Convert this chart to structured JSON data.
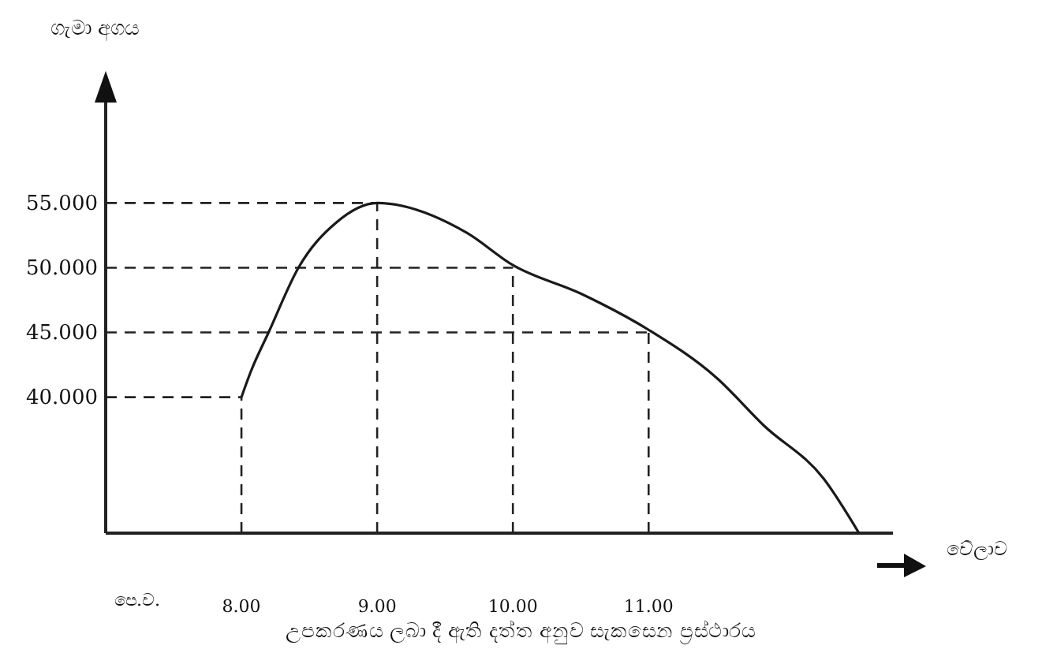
{
  "chart_data": {
    "type": "line",
    "title": "උපකරණය ලබා දී ඇති දත්ත  අනුව සැකසෙන ප්‍රස්ථාරය",
    "xlabel": "වේලාව",
    "ylabel": "ගැමා අගය",
    "annotations": [
      "පෙ.ව."
    ],
    "series": [
      {
        "color": "#1a1a1a",
        "x": [
          8,
          8.07,
          8.2,
          8.42,
          8.7,
          9,
          9.66,
          10,
          10.5,
          11,
          11.5,
          11.85,
          12.29,
          12.55
        ],
        "values": [
          40,
          42,
          45,
          50,
          53.5,
          55,
          52.7,
          50.2,
          48,
          45.2,
          41.5,
          37.8,
          33.7,
          29.5
        ]
      }
    ],
    "xlim": [
      7,
      12.8
    ],
    "ylim": [
      29.5,
      63
    ],
    "xticks": [
      {
        "value": 8,
        "label": "8.00"
      },
      {
        "value": 9,
        "label": "9.00"
      },
      {
        "value": 10,
        "label": "10.00"
      },
      {
        "value": 11,
        "label": "11.00"
      }
    ],
    "yticks": [
      {
        "value": 40,
        "label": "40.000"
      },
      {
        "value": 45,
        "label": "45.000"
      },
      {
        "value": 50,
        "label": "50.000"
      },
      {
        "value": 55,
        "label": "55.000"
      }
    ],
    "ref_lines": [
      {
        "axis": "x",
        "value": 8,
        "line_style": "dashed"
      },
      {
        "axis": "y",
        "value": 40,
        "line_style": "dashed"
      },
      {
        "axis": "x",
        "value": 9,
        "line_style": "dashed"
      },
      {
        "axis": "y",
        "value": 55,
        "line_style": "dashed"
      },
      {
        "axis": "x",
        "value": 10,
        "line_style": "dashed"
      },
      {
        "axis": "y",
        "value": 50,
        "line_style": "dashed"
      },
      {
        "axis": "x",
        "value": 11,
        "line_style": "dashed"
      },
      {
        "axis": "y",
        "value": 45,
        "line_style": "dashed"
      }
    ],
    "grid": false,
    "marker": "none",
    "line_style": "solid"
  }
}
